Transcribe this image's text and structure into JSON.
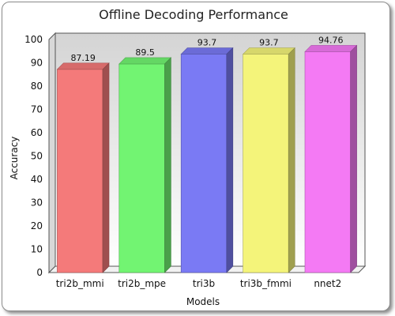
{
  "chart_data": {
    "type": "bar",
    "title": "Offline Decoding Performance",
    "xlabel": "Models",
    "ylabel": "Accuracy",
    "categories": [
      "tri2b_mmi",
      "tri2b_mpe",
      "tri3b",
      "tri3b_fmmi",
      "nnet2"
    ],
    "values": [
      87.19,
      89.5,
      93.7,
      93.7,
      94.76
    ],
    "data_labels": [
      "87.19",
      "89.5",
      "93.7",
      "93.7",
      "94.76"
    ],
    "colors": [
      "#f47a7a",
      "#72f472",
      "#7a7af4",
      "#f4f47a",
      "#f47af4"
    ],
    "ylim": [
      0,
      100
    ],
    "yticks": [
      0,
      10,
      20,
      30,
      40,
      50,
      60,
      70,
      80,
      90,
      100
    ],
    "grid": false,
    "legend": "none"
  }
}
